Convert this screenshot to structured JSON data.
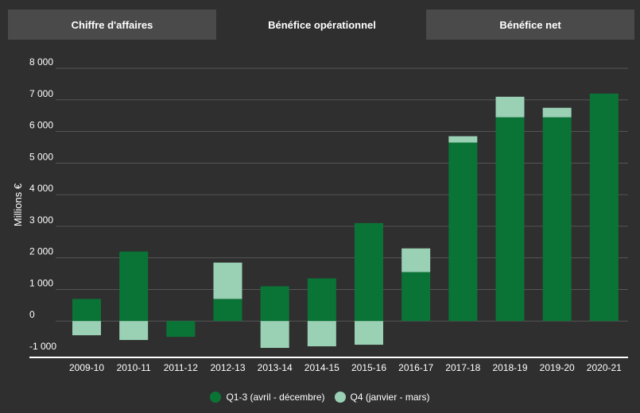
{
  "tabs": [
    {
      "label": "Chiffre d'affaires",
      "active": false
    },
    {
      "label": "Bénéfice opérationnel",
      "active": true
    },
    {
      "label": "Bénéfice net",
      "active": false
    }
  ],
  "colors": {
    "q13": "#0a7436",
    "q4": "#9ad0b4",
    "grid": "#555555",
    "baseline": "#ffffff"
  },
  "chart_data": {
    "type": "bar",
    "stacked": true,
    "ylabel": "Millions €",
    "ylim": [
      -1000,
      8000
    ],
    "yticks": [
      {
        "value": 8000,
        "label": "8 000"
      },
      {
        "value": 7000,
        "label": "7 000"
      },
      {
        "value": 6000,
        "label": "6 000"
      },
      {
        "value": 5000,
        "label": "5 000"
      },
      {
        "value": 4000,
        "label": "4 000"
      },
      {
        "value": 3000,
        "label": "3 000"
      },
      {
        "value": 2000,
        "label": "2 000"
      },
      {
        "value": 1000,
        "label": "1 000"
      },
      {
        "value": 0,
        "label": "0"
      },
      {
        "value": -1000,
        "label": "-1 000"
      }
    ],
    "categories": [
      "2009-10",
      "2010-11",
      "2011-12",
      "2012-13",
      "2013-14",
      "2014-15",
      "2015-16",
      "2016-17",
      "2017-18",
      "2018-19",
      "2019-20",
      "2020-21"
    ],
    "series": [
      {
        "name": "Q1-3 (avril - décembre)",
        "values": [
          700,
          2200,
          -500,
          700,
          1100,
          1350,
          3100,
          1550,
          5650,
          6450,
          6450,
          7200
        ]
      },
      {
        "name": "Q4 (janvier - mars)",
        "values": [
          -450,
          -600,
          0,
          1150,
          -850,
          -800,
          -750,
          750,
          200,
          650,
          300,
          0
        ]
      }
    ],
    "legend_position": "bottom"
  }
}
